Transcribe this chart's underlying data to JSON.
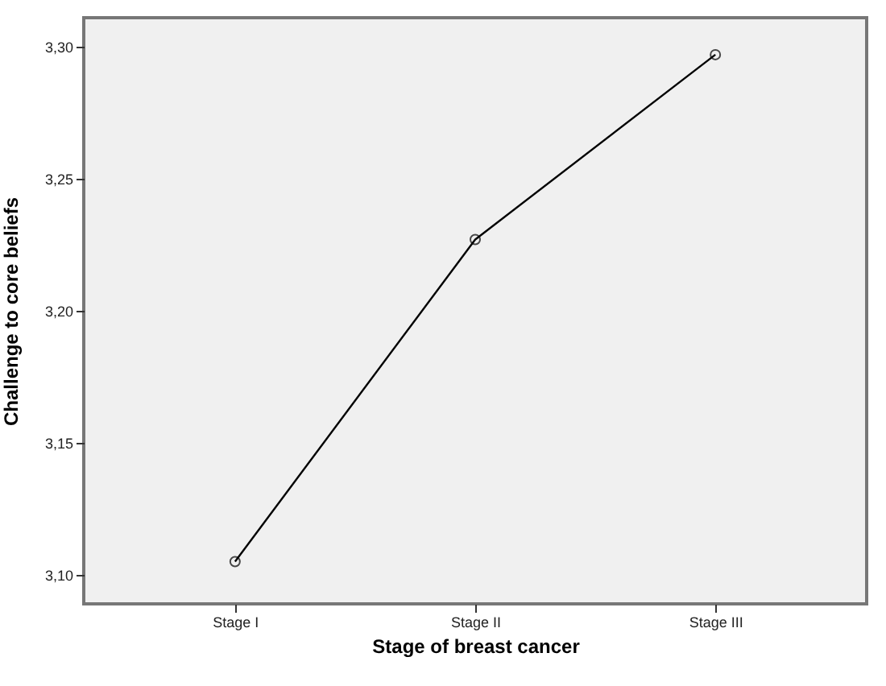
{
  "chart_data": {
    "type": "line",
    "xlabel": "Stage of breast cancer",
    "ylabel": "Challenge to core beliefs",
    "categories": [
      "Stage I",
      "Stage II",
      "Stage III"
    ],
    "series": [
      {
        "color": "#000000",
        "values": [
          3.105,
          3.227,
          3.297
        ]
      }
    ],
    "ylim": [
      3.089,
      3.311
    ],
    "yticks": [
      {
        "value": 3.1,
        "label": "3,10"
      },
      {
        "value": 3.15,
        "label": "3,15"
      },
      {
        "value": 3.2,
        "label": "3,20"
      },
      {
        "value": 3.25,
        "label": "3,25"
      },
      {
        "value": 3.3,
        "label": "3,30"
      }
    ],
    "marker": "circle",
    "line_style": "solid",
    "grid": false,
    "legend": false
  }
}
